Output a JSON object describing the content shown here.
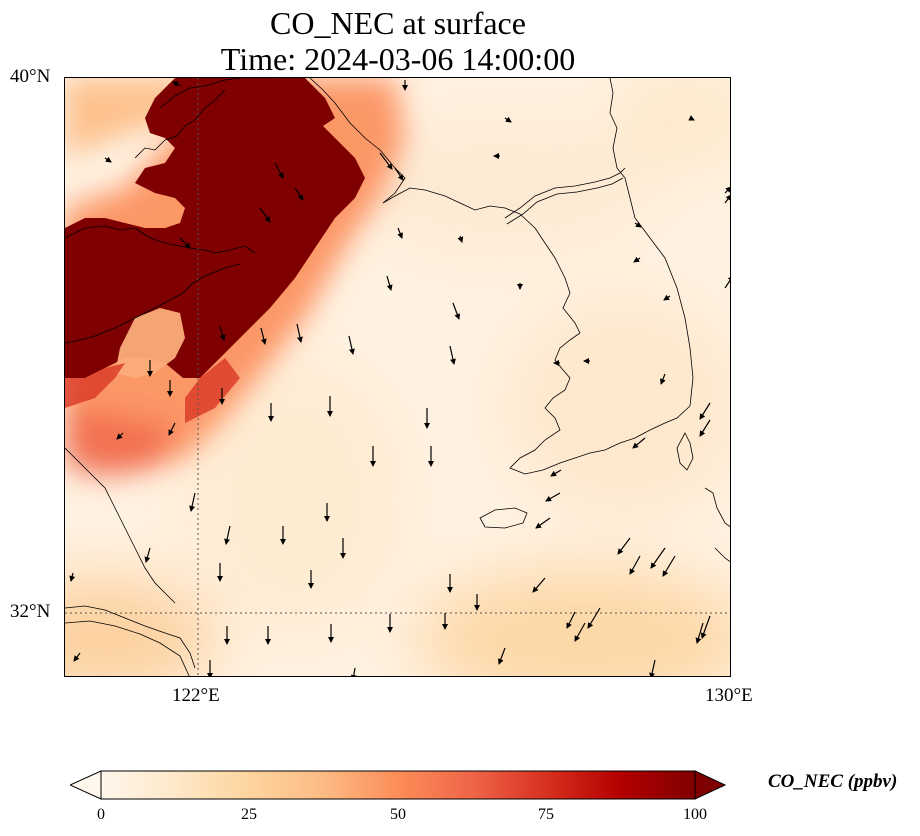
{
  "title": {
    "line1": "CO_NEC at surface",
    "line2": "Time: 2024-03-06 14:00:00"
  },
  "axes": {
    "lat_labels": [
      "40°N",
      "32°N"
    ],
    "lon_labels": [
      "122°E",
      "130°E"
    ],
    "lon_range": [
      120,
      130
    ],
    "lat_range": [
      31,
      40
    ],
    "gridlines": "dotted at 122°E and 32°N"
  },
  "colorbar": {
    "label": "CO_NEC (ppbv)",
    "ticks": [
      "0",
      "25",
      "50",
      "75",
      "100"
    ],
    "range": [
      0,
      100
    ],
    "extend": "both",
    "colormap": "OrRd",
    "colors": [
      "#fff7ec",
      "#fee8c8",
      "#fdd49e",
      "#fdbb84",
      "#fc8d59",
      "#ef6548",
      "#d7301f",
      "#b30000",
      "#7f0000"
    ]
  },
  "chart_data": {
    "type": "heatmap",
    "variable": "CO_NEC",
    "units": "ppbv",
    "level": "surface",
    "time": "2024-03-06 14:00:00",
    "features": [
      "plume high (>=100 ppbv) over Shandong / northern Yellow Sea west of 123.5°E",
      "moderate values 25-75 ppbv along western edge 120-121°E, 34-36°N",
      "low background 0-15 ppbv over central Yellow Sea and Korea",
      "wind vectors mostly pointing south / southwest"
    ]
  },
  "icons": {
    "wind": "wind-vector-arrow",
    "coast": "coastline"
  }
}
